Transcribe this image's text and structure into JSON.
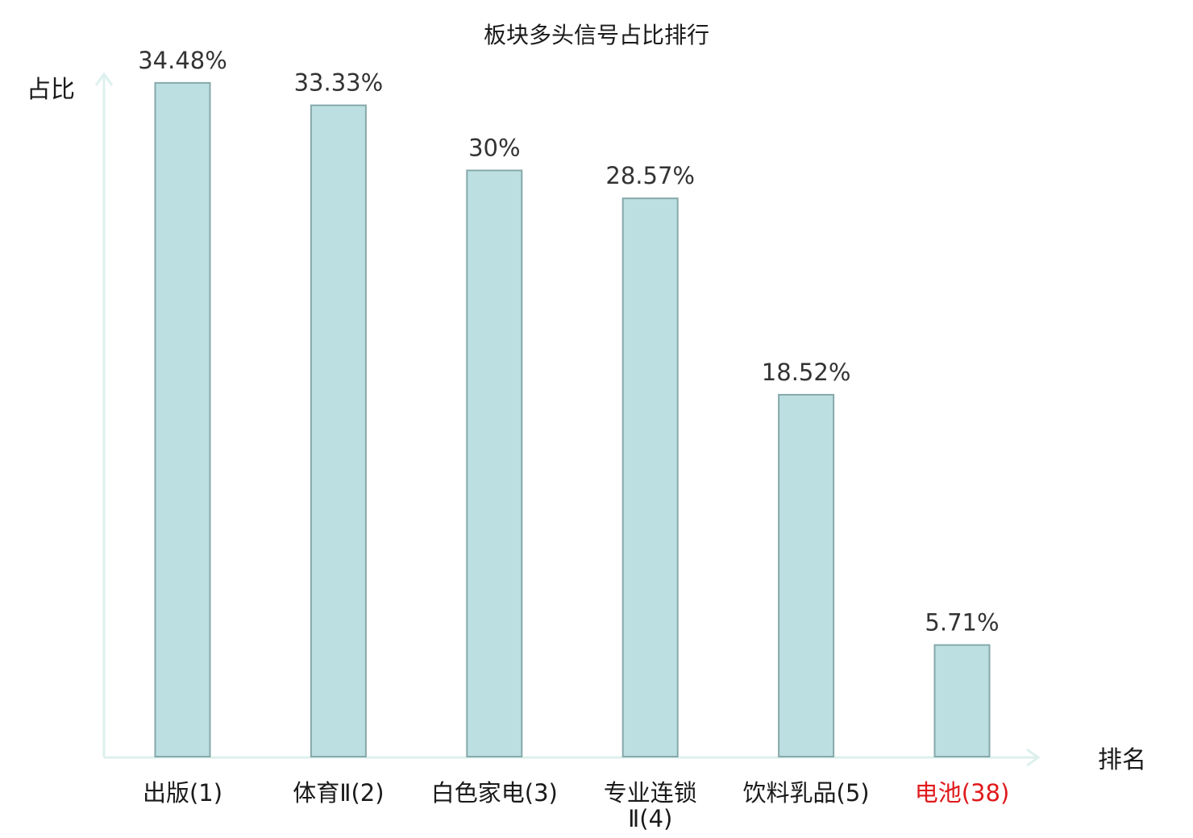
{
  "chart_data": {
    "type": "bar",
    "title": "板块多头信号占比排行",
    "xlabel": "排名",
    "ylabel": "占比",
    "categories": [
      "出版(1)",
      "体育Ⅱ(2)",
      "白色家电(3)",
      "专业连锁Ⅱ(4)",
      "饮料乳品(5)",
      "电池(38)"
    ],
    "category_lines": [
      [
        "出版(1)"
      ],
      [
        "体育Ⅱ(2)"
      ],
      [
        "白色家电(3)"
      ],
      [
        "专业连锁",
        "Ⅱ(4)"
      ],
      [
        "饮料乳品(5)"
      ],
      [
        "电池(38)"
      ]
    ],
    "values": [
      34.48,
      33.33,
      30,
      28.57,
      18.52,
      5.71
    ],
    "value_labels": [
      "34.48%",
      "33.33%",
      "30%",
      "28.57%",
      "18.52%",
      "5.71%"
    ],
    "highlight_index": 5,
    "ylim": [
      0,
      36
    ],
    "grid": false,
    "legend": "none",
    "colors": {
      "bar_fill": "#bce0e2",
      "bar_stroke": "#86a8aa",
      "axis": "#ddf0ee",
      "text": "#1a1a1a",
      "value_label": "#333333",
      "highlight": "#e0191b"
    }
  }
}
